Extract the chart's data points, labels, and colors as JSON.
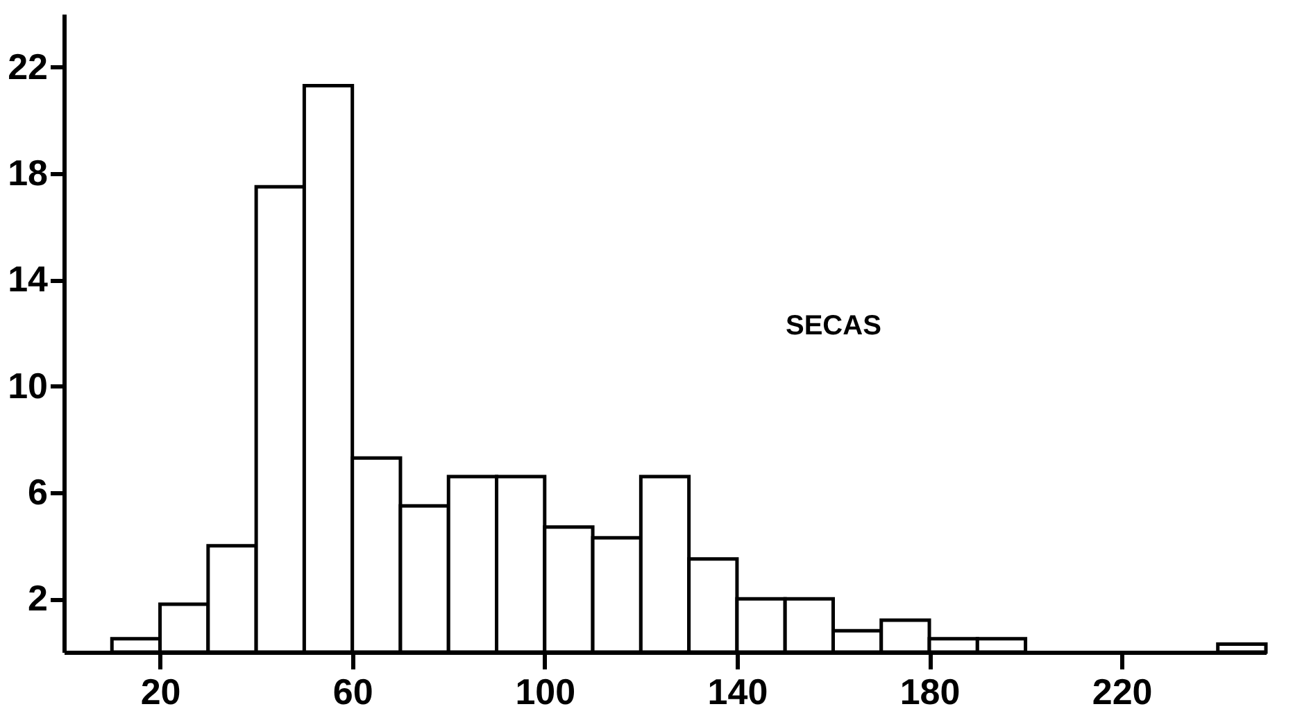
{
  "chart_data": {
    "type": "histogram",
    "bins": [
      10,
      20,
      30,
      40,
      50,
      60,
      70,
      80,
      90,
      100,
      110,
      120,
      130,
      140,
      150,
      160,
      170,
      180,
      190,
      200,
      210,
      220,
      230,
      240,
      250
    ],
    "values": [
      0.5,
      1.8,
      4.0,
      17.5,
      21.3,
      7.3,
      5.5,
      6.6,
      6.6,
      4.7,
      4.3,
      6.6,
      3.5,
      2.0,
      2.0,
      0.8,
      1.2,
      0.5,
      0.5,
      0,
      0,
      0,
      0,
      0.3
    ],
    "color": "#ffffff",
    "xlim": [
      0,
      250
    ],
    "xticks": [
      20,
      60,
      100,
      140,
      180,
      220
    ],
    "ylim": [
      0,
      24
    ],
    "yticks": [
      2,
      6,
      10,
      14,
      18,
      22
    ],
    "annotations": [
      "SECAS"
    ],
    "grid": false
  }
}
